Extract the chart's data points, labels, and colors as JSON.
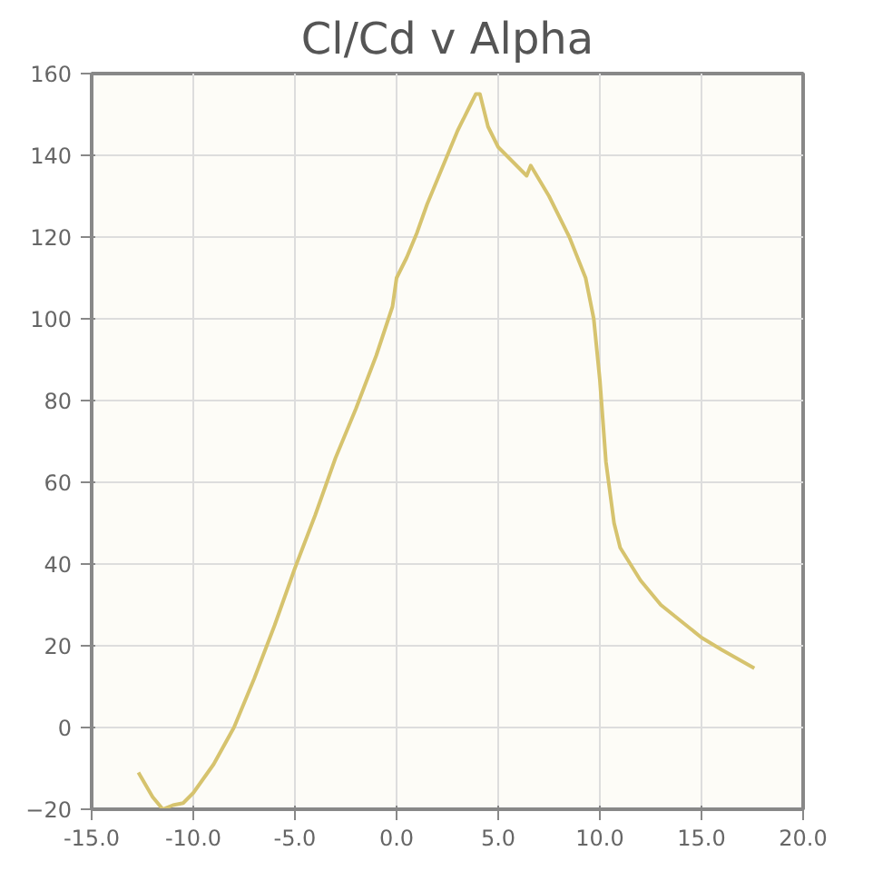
{
  "chart_data": {
    "type": "line",
    "title": "Cl/Cd v Alpha",
    "x": [
      -12.7,
      -12.0,
      -11.5,
      -11.0,
      -10.5,
      -10.0,
      -9.0,
      -8.0,
      -7.0,
      -6.0,
      -5.0,
      -4.0,
      -3.0,
      -2.0,
      -1.0,
      -0.2,
      0.0,
      0.5,
      1.0,
      1.5,
      2.0,
      2.5,
      3.0,
      3.5,
      3.9,
      4.1,
      4.5,
      5.0,
      6.0,
      6.4,
      6.6,
      6.9,
      7.5,
      8.5,
      9.3,
      9.7,
      10.0,
      10.3,
      10.7,
      11.0,
      12.0,
      13.0,
      14.0,
      15.0,
      16.0,
      17.6
    ],
    "series": [
      {
        "color": "#d6c36e",
        "values": [
          -11,
          -17,
          -20,
          -19,
          -18.5,
          -16,
          -9,
          0,
          12,
          25,
          39,
          52,
          66,
          78,
          91,
          103,
          110,
          115,
          121,
          128,
          134,
          140,
          146,
          151,
          155,
          155,
          147,
          142,
          137,
          135,
          137.5,
          135,
          130,
          120,
          110,
          100,
          85,
          65,
          50,
          44,
          36,
          30,
          26,
          22,
          19,
          14.5
        ]
      }
    ],
    "xlim": [
      -15,
      20
    ],
    "ylim": [
      -20,
      160
    ],
    "xticks": [
      {
        "value": -15,
        "label": "-15.0"
      },
      {
        "value": -10,
        "label": "-10.0"
      },
      {
        "value": -5,
        "label": "-5.0"
      },
      {
        "value": 0,
        "label": "0.0"
      },
      {
        "value": 5,
        "label": "5.0"
      },
      {
        "value": 10,
        "label": "10.0"
      },
      {
        "value": 15,
        "label": "15.0"
      },
      {
        "value": 20,
        "label": "20.0"
      }
    ],
    "yticks": [
      -20,
      0,
      20,
      40,
      60,
      80,
      100,
      120,
      140,
      160
    ],
    "grid": true,
    "marker": "none",
    "line_style": "solid"
  }
}
